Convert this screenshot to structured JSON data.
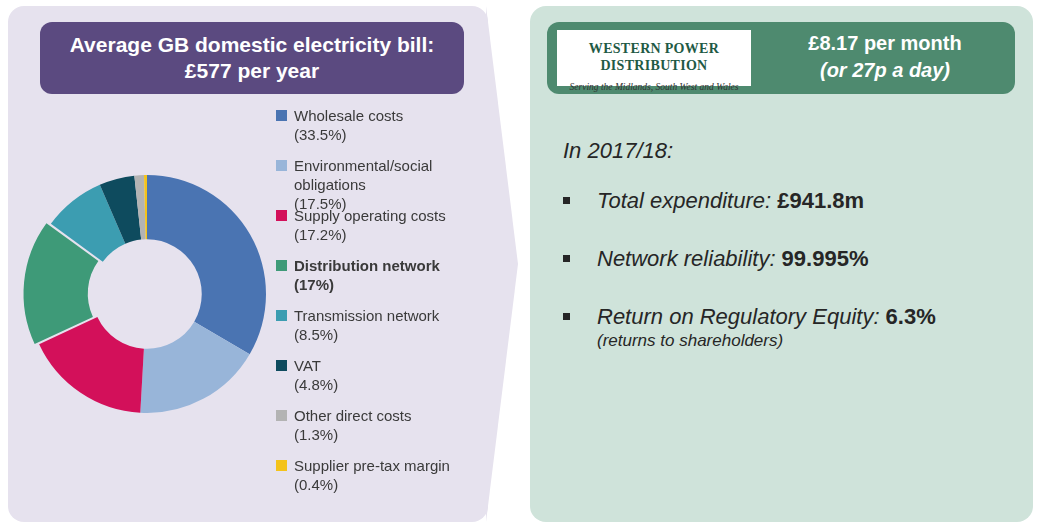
{
  "chart_data": {
    "type": "doughnut",
    "title": "Average GB domestic electricity bill: £577 per year",
    "categories": [
      "Wholesale costs",
      "Environmental/social obligations",
      "Supply operating costs",
      "Distribution network",
      "Transmission network",
      "VAT",
      "Other direct costs",
      "Supplier pre-tax margin"
    ],
    "values": [
      33.5,
      17.5,
      17.2,
      17,
      8.5,
      4.8,
      1.3,
      0.4
    ],
    "value_labels": [
      "(33.5%)",
      "(17.5%)",
      "(17.2%)",
      "(17%)",
      "(8.5%)",
      "(4.8%)",
      "(1.3%)",
      "(0.4%)"
    ],
    "colors": [
      "#4a74b2",
      "#98b5d9",
      "#d3105a",
      "#3e9a78",
      "#3c9db1",
      "#0e4b5e",
      "#b3b3b3",
      "#f4c31a"
    ],
    "legend": "right"
  },
  "panel": {
    "logo": {
      "name": "WESTERN POWER DISTRIBUTION",
      "tagline": "Serving the Midlands, South West and Wales"
    },
    "header": "£8.17 per month",
    "subheader": "(or 27p a day)",
    "intro": "In 2017/18:",
    "bullets": [
      {
        "label": "Total expenditure:",
        "value": "£941.8m"
      },
      {
        "label": "Network reliability:",
        "value": "99.995%"
      },
      {
        "label": "Return on Regulatory Equity:",
        "value": "6.3%",
        "note": "(returns to shareholders)"
      }
    ]
  }
}
